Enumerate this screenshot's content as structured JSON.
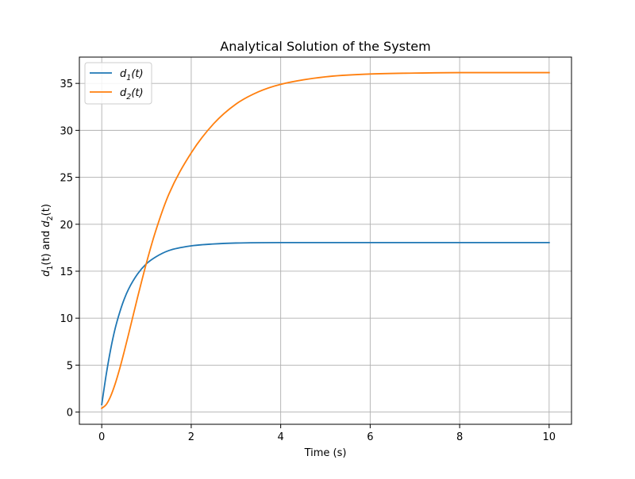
{
  "chart_data": {
    "type": "line",
    "title": "Analytical Solution of the System",
    "xlabel": "Time (s)",
    "ylabel": {
      "parts": [
        "d",
        "1",
        "(t) and ",
        "d",
        "2",
        "(t)"
      ]
    },
    "xlim": [
      -0.5,
      10.5
    ],
    "ylim": [
      -1.3,
      37.8
    ],
    "grid": true,
    "legend_placement": "top-left",
    "xticks": [
      0,
      2,
      4,
      6,
      8,
      10
    ],
    "xtick_labels": [
      "0",
      "2",
      "4",
      "6",
      "8",
      "10"
    ],
    "yticks": [
      0,
      5,
      10,
      15,
      20,
      25,
      30,
      35
    ],
    "ytick_labels": [
      "0",
      "5",
      "10",
      "15",
      "20",
      "25",
      "30",
      "35"
    ],
    "series": [
      {
        "name": "d1(t)",
        "legend_parts": [
          "d",
          "1",
          "(t)"
        ],
        "color": "#1f77b4",
        "x": [
          0,
          0.1,
          0.2,
          0.3,
          0.4,
          0.5,
          0.6,
          0.8,
          1.0,
          1.2,
          1.5,
          2.0,
          2.5,
          3.0,
          4.0,
          5.0,
          6.0,
          8.0,
          10.0
        ],
        "y": [
          0.8,
          4.0,
          6.7,
          8.9,
          10.6,
          12.0,
          13.1,
          14.7,
          15.8,
          16.5,
          17.2,
          17.7,
          17.9,
          18.0,
          18.05,
          18.05,
          18.05,
          18.05,
          18.05
        ]
      },
      {
        "name": "d2(t)",
        "legend_parts": [
          "d",
          "2",
          "(t)"
        ],
        "color": "#ff7f0e",
        "x": [
          0,
          0.1,
          0.2,
          0.3,
          0.4,
          0.5,
          0.6,
          0.8,
          1.0,
          1.2,
          1.5,
          2.0,
          2.5,
          3.0,
          3.5,
          4.0,
          5.0,
          6.0,
          7.0,
          8.0,
          9.0,
          10.0
        ],
        "y": [
          0.4,
          0.8,
          1.7,
          3.0,
          4.6,
          6.4,
          8.3,
          12.2,
          15.9,
          19.2,
          23.2,
          27.6,
          30.7,
          32.8,
          34.1,
          34.9,
          35.7,
          36.0,
          36.1,
          36.15,
          36.15,
          36.15
        ]
      }
    ]
  }
}
